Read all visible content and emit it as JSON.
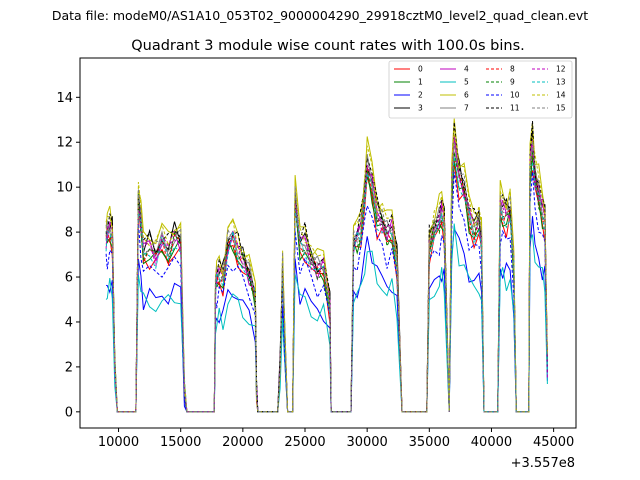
{
  "chart_data": {
    "type": "line",
    "suptitle": "Data file: modeM0/AS1A10_053T02_9000004290_29918cztM0_level2_quad_clean.evt",
    "title": "Quadrant 3 module wise count rates with 100.0s bins.",
    "xlabel": "",
    "ylabel": "",
    "x_offset_label": "+3.557e8",
    "xlim": [
      6900,
      46800
    ],
    "ylim": [
      -0.72,
      15.75
    ],
    "x_ticks": [
      10000,
      15000,
      20000,
      25000,
      30000,
      35000,
      40000,
      45000
    ],
    "x_tick_labels": [
      "10000",
      "15000",
      "20000",
      "25000",
      "30000",
      "35000",
      "40000",
      "45000"
    ],
    "y_ticks": [
      0,
      2,
      4,
      6,
      8,
      10,
      12,
      14
    ],
    "y_tick_labels": [
      "0",
      "2",
      "4",
      "6",
      "8",
      "10",
      "12",
      "14"
    ],
    "grid": false,
    "legend_position": "top-right",
    "bin_size_s": 100.0,
    "series": [
      {
        "name": "0",
        "color": "#ff0000",
        "dash": "solid"
      },
      {
        "name": "1",
        "color": "#008000",
        "dash": "solid"
      },
      {
        "name": "2",
        "color": "#0000ff",
        "dash": "solid"
      },
      {
        "name": "3",
        "color": "#000000",
        "dash": "solid"
      },
      {
        "name": "4",
        "color": "#bf00bf",
        "dash": "solid"
      },
      {
        "name": "5",
        "color": "#00bfbf",
        "dash": "solid"
      },
      {
        "name": "6",
        "color": "#bfbf00",
        "dash": "solid"
      },
      {
        "name": "7",
        "color": "#808080",
        "dash": "solid"
      },
      {
        "name": "8",
        "color": "#ff0000",
        "dash": "dashed"
      },
      {
        "name": "9",
        "color": "#008000",
        "dash": "dashed"
      },
      {
        "name": "10",
        "color": "#0000ff",
        "dash": "dashed"
      },
      {
        "name": "11",
        "color": "#000000",
        "dash": "dashed"
      },
      {
        "name": "12",
        "color": "#bf00bf",
        "dash": "dashed"
      },
      {
        "name": "13",
        "color": "#00bfbf",
        "dash": "dashed"
      },
      {
        "name": "14",
        "color": "#bfbf00",
        "dash": "dashed"
      },
      {
        "name": "15",
        "color": "#808080",
        "dash": "dashed"
      }
    ],
    "profile": {
      "x": [
        9000,
        9100,
        9300,
        9500,
        9700,
        9900,
        10000,
        10500,
        11000,
        11400,
        11500,
        11600,
        11800,
        12000,
        12500,
        13000,
        13500,
        14000,
        14500,
        15000,
        15300,
        15500,
        15600,
        16000,
        17000,
        17700,
        17800,
        17900,
        18100,
        18400,
        18800,
        19200,
        19600,
        20000,
        20500,
        21000,
        21100,
        21200,
        22000,
        22800,
        23000,
        23200,
        23300,
        23600,
        24000,
        24200,
        24600,
        25000,
        25500,
        26000,
        26500,
        27000,
        27100,
        27300,
        28000,
        28700,
        28900,
        29200,
        29500,
        29800,
        30000,
        30400,
        30800,
        31200,
        31600,
        32000,
        32400,
        32800,
        33000,
        33200,
        34000,
        34500,
        34800,
        35000,
        35400,
        35800,
        36000,
        36200,
        36600,
        36800,
        37000,
        37400,
        37800,
        38200,
        38600,
        39000,
        39200,
        39400,
        40000,
        40500,
        40700,
        40900,
        41200,
        41500,
        41800,
        42000,
        42100,
        43000,
        43100,
        43300,
        43500,
        43800,
        44100,
        44300,
        44500
      ],
      "base": [
        7.8,
        8.0,
        8.2,
        8.0,
        2.0,
        0,
        0,
        0,
        0,
        0,
        5.0,
        9.5,
        8.5,
        7.2,
        7.4,
        7.0,
        7.6,
        7.2,
        7.8,
        7.6,
        1.0,
        0,
        0,
        0,
        0,
        0,
        5.5,
        6.0,
        6.2,
        6.0,
        7.5,
        7.8,
        7.2,
        6.8,
        6.2,
        5.2,
        1.0,
        0,
        0,
        0,
        2.0,
        6.5,
        4.5,
        0,
        0,
        9.5,
        7.5,
        7.6,
        6.8,
        6.4,
        6.5,
        4.8,
        0,
        0,
        0,
        0,
        7.5,
        7.8,
        8.2,
        9.8,
        11.0,
        10.2,
        8.8,
        8.5,
        8.0,
        8.2,
        6.8,
        0,
        0,
        0,
        0,
        0,
        0,
        7.5,
        8.2,
        8.6,
        9.0,
        8.5,
        0,
        10.0,
        12.0,
        10.5,
        10.0,
        8.8,
        8.2,
        8.5,
        7.6,
        0,
        0,
        0,
        9.2,
        9.0,
        8.8,
        9.0,
        6.5,
        0,
        0,
        0,
        11.0,
        12.0,
        10.5,
        9.8,
        9.0,
        8.6,
        2.0
      ],
      "series_scale": [
        0.93,
        0.95,
        0.7,
        1.02,
        1.0,
        0.66,
        1.08,
        1.0,
        0.98,
        0.97,
        0.86,
        1.04,
        1.0,
        0.96,
        1.06,
        1.01
      ]
    }
  }
}
